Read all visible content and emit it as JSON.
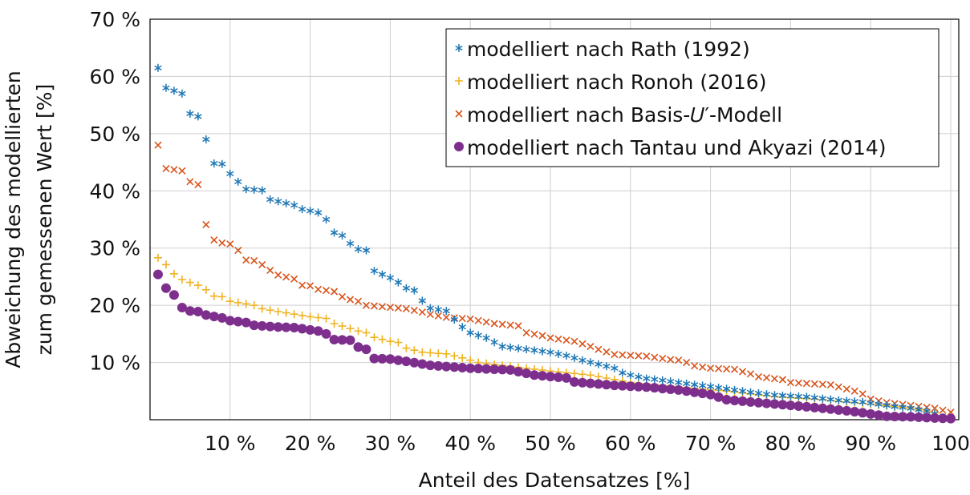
{
  "chart_data": {
    "type": "scatter",
    "title": "",
    "xlabel": "Anteil des Datensatzes [%]",
    "ylabel_lines": [
      "Abweichung des modellierten",
      "zum gemessenen Wert [%]"
    ],
    "xlim": [
      0,
      101
    ],
    "ylim": [
      0,
      70
    ],
    "grid": true,
    "legend_position": "top-right",
    "x_ticks": [
      {
        "value": 10,
        "label": "10 %"
      },
      {
        "value": 20,
        "label": "20 %"
      },
      {
        "value": 30,
        "label": "30 %"
      },
      {
        "value": 40,
        "label": "40 %"
      },
      {
        "value": 50,
        "label": "50 %"
      },
      {
        "value": 60,
        "label": "60 %"
      },
      {
        "value": 70,
        "label": "70 %"
      },
      {
        "value": 80,
        "label": "80 %"
      },
      {
        "value": 90,
        "label": "90 %"
      },
      {
        "value": 100,
        "label": "100"
      }
    ],
    "y_ticks": [
      {
        "value": 10,
        "label": "10 %"
      },
      {
        "value": 20,
        "label": "20 %"
      },
      {
        "value": 30,
        "label": "30 %"
      },
      {
        "value": 40,
        "label": "40 %"
      },
      {
        "value": 50,
        "label": "50 %"
      },
      {
        "value": 60,
        "label": "60 %"
      },
      {
        "value": 70,
        "label": "70 %"
      }
    ],
    "series": [
      {
        "name": "modelliert nach Rath (1992)",
        "marker": "asterisk",
        "color": "#1f77b4",
        "anchors": [
          [
            1,
            61.5
          ],
          [
            2,
            58
          ],
          [
            3,
            57.5
          ],
          [
            4,
            57
          ],
          [
            5,
            53.5
          ],
          [
            6,
            53
          ],
          [
            7,
            49
          ],
          [
            8,
            44.8
          ],
          [
            9,
            44.7
          ],
          [
            10,
            43
          ],
          [
            11,
            41.6
          ],
          [
            12,
            40.3
          ],
          [
            14,
            40.1
          ],
          [
            15,
            38.5
          ],
          [
            18,
            37.5
          ],
          [
            19,
            36.8
          ],
          [
            21,
            36.2
          ],
          [
            22,
            35
          ],
          [
            23,
            32.7
          ],
          [
            24,
            32.2
          ],
          [
            25,
            30.8
          ],
          [
            26,
            29.8
          ],
          [
            27,
            29.6
          ],
          [
            28,
            26
          ],
          [
            30,
            24.8
          ],
          [
            31,
            24
          ],
          [
            32,
            23
          ],
          [
            33,
            22.6
          ],
          [
            34,
            20.8
          ],
          [
            35,
            19.5
          ],
          [
            37,
            19
          ],
          [
            38,
            17.5
          ],
          [
            39,
            16.2
          ],
          [
            40,
            15.2
          ],
          [
            42,
            14.3
          ],
          [
            44,
            12.8
          ],
          [
            47,
            12.3
          ],
          [
            50,
            11.8
          ],
          [
            52,
            11.2
          ],
          [
            54,
            10.4
          ],
          [
            56,
            9.7
          ],
          [
            58,
            9
          ],
          [
            59,
            8.2
          ],
          [
            60,
            7.8
          ],
          [
            62,
            7.2
          ],
          [
            64,
            6.9
          ],
          [
            67,
            6.3
          ],
          [
            70,
            5.8
          ],
          [
            73,
            5.2
          ],
          [
            75,
            4.8
          ],
          [
            78,
            4.3
          ],
          [
            82,
            4
          ],
          [
            86,
            3.4
          ],
          [
            89,
            3.1
          ],
          [
            91,
            2.7
          ],
          [
            93,
            2.3
          ],
          [
            95,
            2
          ],
          [
            97,
            1.5
          ],
          [
            98,
            1.1
          ]
        ]
      },
      {
        "name": "modelliert nach Ronoh (2016)",
        "marker": "plus",
        "color": "#f0b323",
        "anchors": [
          [
            1,
            28.3
          ],
          [
            2,
            27.1
          ],
          [
            3,
            25.5
          ],
          [
            4,
            24.5
          ],
          [
            6,
            23.5
          ],
          [
            7,
            22.7
          ],
          [
            8,
            21.6
          ],
          [
            9,
            21.5
          ],
          [
            10,
            20.7
          ],
          [
            13,
            20
          ],
          [
            14,
            19.4
          ],
          [
            16,
            18.9
          ],
          [
            20,
            18
          ],
          [
            22,
            17.7
          ],
          [
            23,
            16.8
          ],
          [
            26,
            15.5
          ],
          [
            27,
            15.2
          ],
          [
            28,
            14.4
          ],
          [
            30,
            13.7
          ],
          [
            31,
            13.5
          ],
          [
            32,
            12.5
          ],
          [
            34,
            11.8
          ],
          [
            37,
            11.5
          ],
          [
            39,
            10.8
          ],
          [
            41,
            10
          ],
          [
            44,
            9.5
          ],
          [
            50,
            8.5
          ],
          [
            55,
            7.8
          ],
          [
            60,
            6.5
          ],
          [
            67,
            5.6
          ],
          [
            72,
            5
          ],
          [
            78,
            4
          ],
          [
            84,
            3.5
          ],
          [
            90,
            2.7
          ],
          [
            95,
            2
          ],
          [
            98,
            1.2
          ]
        ]
      },
      {
        "name": "modelliert nach Basis-𝑈′-Modell",
        "marker": "cross",
        "color": "#d95319",
        "anchors": [
          [
            1,
            48
          ],
          [
            2,
            43.9
          ],
          [
            3,
            43.7
          ],
          [
            4,
            43.5
          ],
          [
            5,
            41.6
          ],
          [
            6,
            41.1
          ],
          [
            7,
            34.1
          ],
          [
            8,
            31.4
          ],
          [
            9,
            30.9
          ],
          [
            10,
            30.7
          ],
          [
            11,
            29.6
          ],
          [
            12,
            27.9
          ],
          [
            13,
            27.8
          ],
          [
            14,
            27.1
          ],
          [
            15,
            26.1
          ],
          [
            16,
            25.3
          ],
          [
            18,
            24.6
          ],
          [
            19,
            23.5
          ],
          [
            20,
            23.4
          ],
          [
            21,
            22.8
          ],
          [
            23,
            22.4
          ],
          [
            24,
            21.5
          ],
          [
            25,
            21
          ],
          [
            26,
            20.7
          ],
          [
            27,
            20
          ],
          [
            32,
            19.4
          ],
          [
            34,
            18.8
          ],
          [
            35,
            18.4
          ],
          [
            37,
            17.9
          ],
          [
            40,
            17.6
          ],
          [
            43,
            16.8
          ],
          [
            46,
            16.4
          ],
          [
            47,
            15.2
          ],
          [
            49,
            14.7
          ],
          [
            50,
            14.3
          ],
          [
            53,
            13.7
          ],
          [
            55,
            12.8
          ],
          [
            56,
            12.3
          ],
          [
            58,
            11.4
          ],
          [
            62,
            11.1
          ],
          [
            65,
            10.5
          ],
          [
            66,
            10.4
          ],
          [
            67,
            10
          ],
          [
            68,
            9.4
          ],
          [
            70,
            9
          ],
          [
            73,
            8.8
          ],
          [
            75,
            8
          ],
          [
            76,
            7.5
          ],
          [
            79,
            7
          ],
          [
            80,
            6.5
          ],
          [
            85,
            6.1
          ],
          [
            88,
            5
          ],
          [
            89,
            4.5
          ],
          [
            90,
            3.6
          ],
          [
            92,
            3
          ],
          [
            95,
            2.5
          ],
          [
            98,
            2
          ],
          [
            100,
            1.3
          ]
        ]
      },
      {
        "name": "modelliert nach Tantau und Akyazi (2014)",
        "marker": "circle",
        "color": "#7e2f8e",
        "anchors": [
          [
            1,
            25.4
          ],
          [
            2,
            23
          ],
          [
            3,
            21.8
          ],
          [
            4,
            19.6
          ],
          [
            5,
            19
          ],
          [
            6,
            18.9
          ],
          [
            7,
            18.3
          ],
          [
            9,
            17.8
          ],
          [
            10,
            17.3
          ],
          [
            12,
            17
          ],
          [
            13,
            16.5
          ],
          [
            16,
            16.2
          ],
          [
            18,
            16.1
          ],
          [
            20,
            15.7
          ],
          [
            21,
            15.5
          ],
          [
            22,
            15
          ],
          [
            23,
            14
          ],
          [
            25,
            13.9
          ],
          [
            26,
            12.7
          ],
          [
            27,
            12.3
          ],
          [
            28,
            10.7
          ],
          [
            30,
            10.6
          ],
          [
            32,
            10.2
          ],
          [
            35,
            9.5
          ],
          [
            40,
            9
          ],
          [
            45,
            8.7
          ],
          [
            48,
            7.8
          ],
          [
            52,
            7.3
          ],
          [
            53,
            6.6
          ],
          [
            58,
            6
          ],
          [
            62,
            5.7
          ],
          [
            66,
            5.2
          ],
          [
            70,
            4.4
          ],
          [
            72,
            3.5
          ],
          [
            75,
            3.1
          ],
          [
            80,
            2.5
          ],
          [
            84,
            2
          ],
          [
            88,
            1.4
          ],
          [
            90,
            1
          ],
          [
            92,
            0.6
          ],
          [
            95,
            0.5
          ],
          [
            98,
            0.3
          ],
          [
            100,
            0.2
          ]
        ]
      }
    ]
  }
}
